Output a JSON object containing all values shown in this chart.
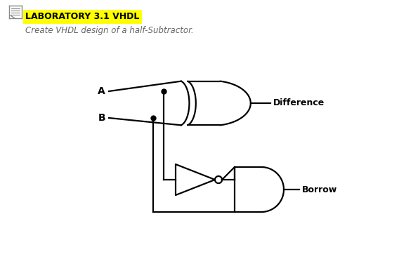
{
  "title": "LABORATORY 3.1 VHDL",
  "subtitle": "Create VHDL design of a half-Subtractor.",
  "title_bg": "#FFFF00",
  "title_color": "#000000",
  "subtitle_color": "#666666",
  "label_A": "A",
  "label_B": "B",
  "label_diff": "Difference",
  "label_borrow": "Borrow",
  "bg_color": "#ffffff",
  "line_color": "#000000",
  "line_width": 1.6,
  "figsize": [
    5.68,
    3.69
  ],
  "dpi": 100
}
